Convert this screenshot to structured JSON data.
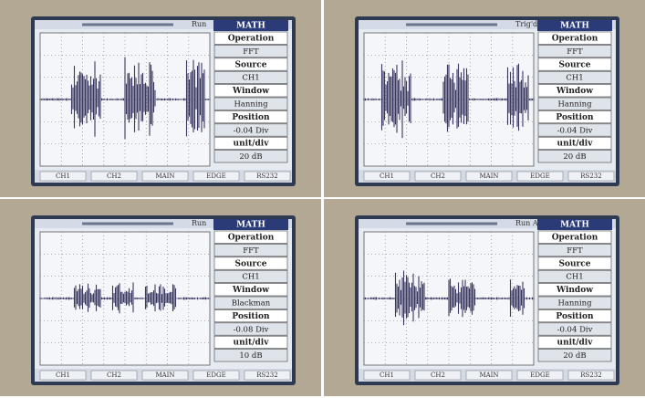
{
  "panels": [
    {
      "status": "Run",
      "menu": {
        "title": "MATH",
        "items": [
          "Operation",
          "FFT",
          "Source",
          "CH1",
          "Window",
          "Hanning",
          "Position",
          "-0.04 Div",
          "unit/div",
          "20 dB"
        ]
      },
      "footer": [
        "CH1",
        "CH2",
        "MAIN",
        "EDGE",
        "RS232"
      ]
    },
    {
      "status": "Trig'd",
      "menu": {
        "title": "MATH",
        "items": [
          "Operation",
          "FFT",
          "Source",
          "CH1",
          "Window",
          "Hanning",
          "Position",
          "-0.04 Div",
          "unit/div",
          "20 dB"
        ]
      },
      "footer": [
        "CH1",
        "CH2",
        "MAIN",
        "EDGE",
        "RS232"
      ]
    },
    {
      "status": "Run",
      "menu": {
        "title": "MATH",
        "items": [
          "Operation",
          "FFT",
          "Source",
          "CH1",
          "Window",
          "Blackman",
          "Position",
          "-0.08 Div",
          "unit/div",
          "10 dB"
        ]
      },
      "footer": [
        "CH1",
        "CH2",
        "MAIN",
        "EDGE",
        "RS232"
      ]
    },
    {
      "status": "Run Auto",
      "menu": {
        "title": "MATH",
        "items": [
          "Operation",
          "FFT",
          "Source",
          "CH1",
          "Window",
          "Hanning",
          "Position",
          "-0.04 Div",
          "unit/div",
          "20 dB"
        ]
      },
      "footer": [
        "CH1",
        "CH2",
        "MAIN",
        "EDGE",
        "RS232"
      ]
    }
  ]
}
